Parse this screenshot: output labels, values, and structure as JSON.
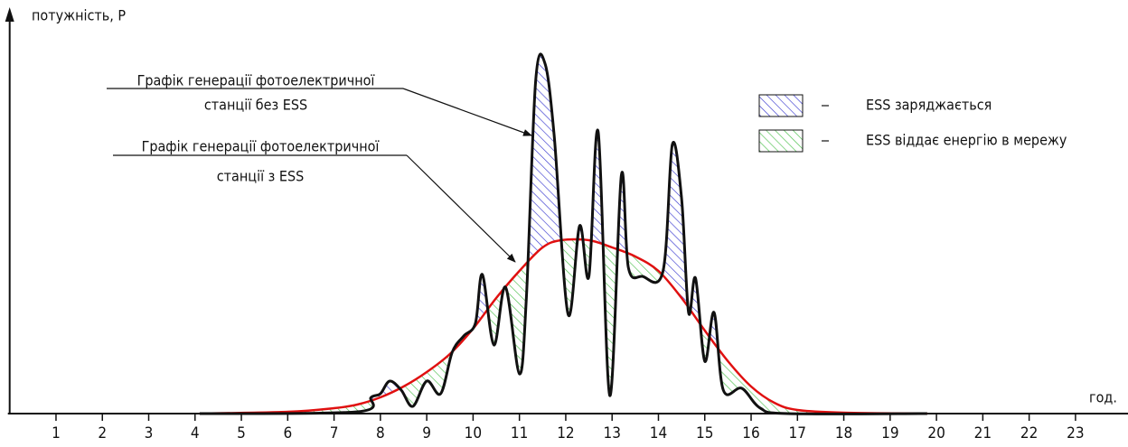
{
  "chart_data": {
    "type": "line",
    "y_label": "потужність, P",
    "x_label": "год.",
    "xlim": [
      0,
      23.9
    ],
    "xticks": [
      1,
      2,
      3,
      4,
      5,
      6,
      7,
      8,
      9,
      10,
      11,
      12,
      13,
      14,
      15,
      16,
      17,
      18,
      19,
      20,
      21,
      22,
      23
    ],
    "ylim": [
      0,
      100
    ],
    "series": [
      {
        "color": "#111111",
        "x": [
          4.1,
          7.5,
          7.8,
          8.0,
          8.2,
          8.45,
          8.7,
          9.0,
          9.3,
          9.55,
          9.8,
          10.05,
          10.2,
          10.45,
          10.7,
          11.0,
          11.15,
          11.35,
          11.55,
          11.75,
          12.05,
          12.3,
          12.5,
          12.7,
          12.95,
          13.2,
          13.35,
          13.65,
          14.1,
          14.3,
          14.5,
          14.65,
          14.8,
          15.0,
          15.2,
          15.4,
          15.8,
          16.2,
          16.8,
          19.8
        ],
        "values": [
          0,
          0.5,
          4.5,
          5.5,
          9,
          6.5,
          2,
          9,
          5.5,
          17,
          21.5,
          25,
          38.5,
          19,
          35,
          11,
          32,
          92,
          97,
          77,
          27.5,
          52,
          38,
          78,
          5,
          66,
          40.5,
          38,
          39.5,
          74.5,
          59.5,
          28,
          37.5,
          14.5,
          28,
          6.5,
          7,
          1.5,
          0,
          0
        ]
      },
      {
        "color": "#e01010",
        "x": [
          4.1,
          6.0,
          7.0,
          7.5,
          8.0,
          8.5,
          9.0,
          9.5,
          10.0,
          10.5,
          11.0,
          11.5,
          11.9,
          12.5,
          13.0,
          13.5,
          14.0,
          14.5,
          15.0,
          15.5,
          16.0,
          16.5,
          17.0,
          18.0,
          19.8
        ],
        "values": [
          0,
          0.5,
          1.5,
          2.5,
          4.5,
          7.5,
          11.5,
          16.5,
          23.5,
          32,
          39.5,
          46,
          48,
          48,
          46,
          43.5,
          39.5,
          32,
          23,
          14.5,
          7.5,
          3,
          1,
          0.25,
          0
        ]
      }
    ],
    "annotations": [
      {
        "lines": [
          "Графік генерації фотоелектричної",
          "станції без ESS"
        ]
      },
      {
        "lines": [
          "Графік генерації фотоелектричної",
          "станції з ESS"
        ]
      }
    ],
    "legend": [
      {
        "label": "ESS заряджається",
        "color": "#3a3ad0"
      },
      {
        "label": "ESS віддає енергію в мережу",
        "color": "#4cc04c"
      }
    ]
  }
}
